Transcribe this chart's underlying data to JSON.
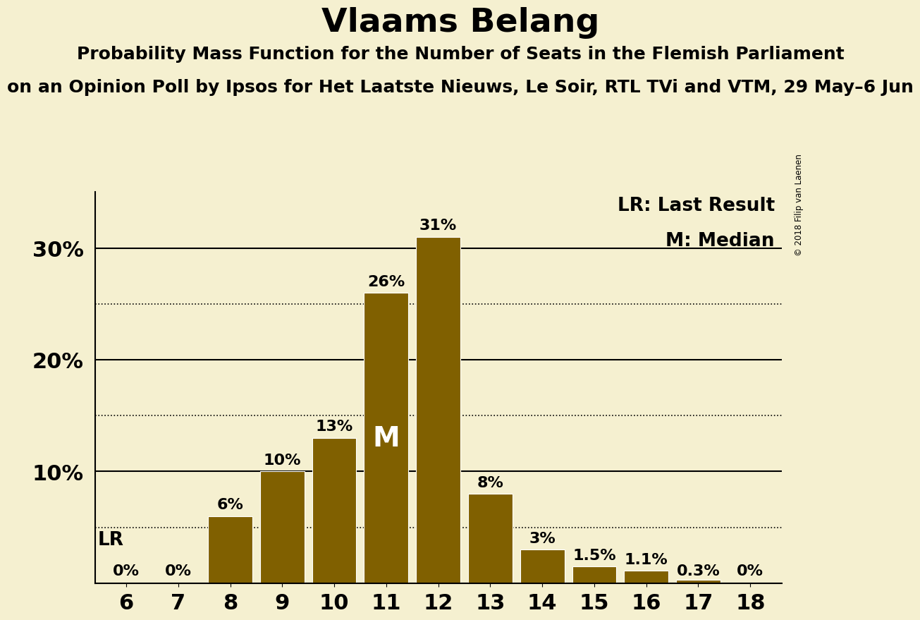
{
  "title": "Vlaams Belang",
  "subtitle": "Probability Mass Function for the Number of Seats in the Flemish Parliament",
  "subtitle2": "on an Opinion Poll by Ipsos for Het Laatste Nieuws, Le Soir, RTL TVi and VTM, 29 May–6 Jun",
  "copyright": "© 2018 Filip van Laenen",
  "seats": [
    6,
    7,
    8,
    9,
    10,
    11,
    12,
    13,
    14,
    15,
    16,
    17,
    18
  ],
  "values": [
    0.0,
    0.0,
    6.0,
    10.0,
    13.0,
    26.0,
    31.0,
    8.0,
    3.0,
    1.5,
    1.1,
    0.3,
    0.0
  ],
  "bar_color": "#806000",
  "bg_color": "#f5f0d0",
  "bar_labels": [
    "0%",
    "0%",
    "6%",
    "10%",
    "13%",
    "26%",
    "31%",
    "8%",
    "3%",
    "1.5%",
    "1.1%",
    "0.3%",
    "0%"
  ],
  "ylim": [
    0,
    35
  ],
  "yticks": [
    10,
    20,
    30
  ],
  "ytick_labels": [
    "10%",
    "20%",
    "30%"
  ],
  "solid_yticks": [
    0,
    10,
    20,
    30
  ],
  "dotted_yticks": [
    5,
    15,
    25
  ],
  "lr_value": 5.0,
  "median_seat": 11,
  "legend_lr": "LR: Last Result",
  "legend_m": "M: Median",
  "title_fontsize": 34,
  "subtitle_fontsize": 18,
  "subtitle2_fontsize": 18,
  "bar_label_fontsize": 16,
  "ytick_fontsize": 22,
  "xtick_fontsize": 22,
  "legend_fontsize": 19
}
